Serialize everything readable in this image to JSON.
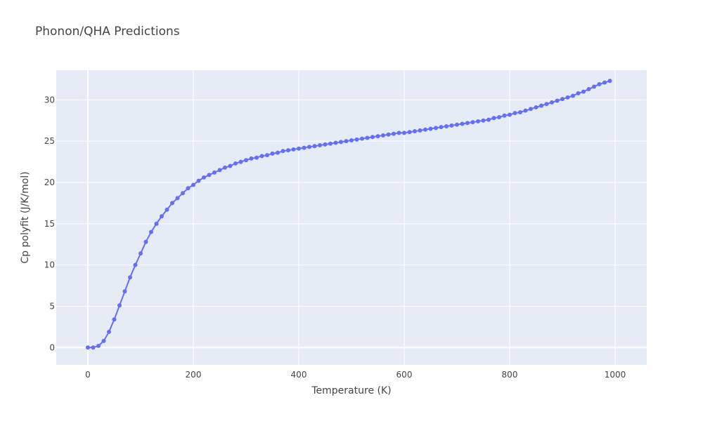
{
  "chart_data": {
    "type": "line",
    "title": "Phonon/QHA Predictions",
    "xlabel": "Temperature (K)",
    "ylabel": "Cp polyfit (J/K/mol)",
    "xlim": [
      -60,
      1060
    ],
    "ylim": [
      -2.1,
      33.6
    ],
    "xticks": [
      0,
      200,
      400,
      600,
      800,
      1000
    ],
    "xtick_labels": [
      "0",
      "200",
      "400",
      "600",
      "800",
      "1000"
    ],
    "yticks": [
      0,
      5,
      10,
      15,
      20,
      25,
      30
    ],
    "ytick_labels": [
      "0",
      "5",
      "10",
      "15",
      "20",
      "25",
      "30"
    ],
    "grid": true,
    "legend": "none",
    "colors": {
      "series": "#636efa",
      "plot_bg": "#e5ecf6",
      "grid": "#ffffff",
      "text": "#444444"
    },
    "series": [
      {
        "mode": "lines+markers",
        "x": [
          0,
          10,
          20,
          30,
          40,
          50,
          60,
          70,
          80,
          90,
          100,
          110,
          120,
          130,
          140,
          150,
          160,
          170,
          180,
          190,
          200,
          210,
          220,
          230,
          240,
          250,
          260,
          270,
          280,
          290,
          300,
          310,
          320,
          330,
          340,
          350,
          360,
          370,
          380,
          390,
          400,
          410,
          420,
          430,
          440,
          450,
          460,
          470,
          480,
          490,
          500,
          510,
          520,
          530,
          540,
          550,
          560,
          570,
          580,
          590,
          600,
          610,
          620,
          630,
          640,
          650,
          660,
          670,
          680,
          690,
          700,
          710,
          720,
          730,
          740,
          750,
          760,
          770,
          780,
          790,
          800,
          810,
          820,
          830,
          840,
          850,
          860,
          870,
          880,
          890,
          900,
          910,
          920,
          930,
          940,
          950,
          960,
          970,
          980,
          990
        ],
        "y": [
          0,
          0,
          0.2,
          0.8,
          1.9,
          3.4,
          5.1,
          6.8,
          8.5,
          10.0,
          11.4,
          12.8,
          14.0,
          15.0,
          15.9,
          16.7,
          17.5,
          18.1,
          18.7,
          19.3,
          19.7,
          20.2,
          20.6,
          20.9,
          21.2,
          21.5,
          21.8,
          22.0,
          22.3,
          22.5,
          22.7,
          22.9,
          23.0,
          23.2,
          23.3,
          23.5,
          23.6,
          23.8,
          23.9,
          24.0,
          24.1,
          24.2,
          24.3,
          24.4,
          24.5,
          24.6,
          24.7,
          24.8,
          24.9,
          25.0,
          25.1,
          25.2,
          25.3,
          25.4,
          25.5,
          25.6,
          25.7,
          25.8,
          25.9,
          26.0,
          26.0,
          26.1,
          26.2,
          26.3,
          26.4,
          26.5,
          26.6,
          26.7,
          26.8,
          26.9,
          27.0,
          27.1,
          27.2,
          27.3,
          27.4,
          27.5,
          27.6,
          27.8,
          27.9,
          28.1,
          28.2,
          28.4,
          28.5,
          28.7,
          28.9,
          29.1,
          29.3,
          29.5,
          29.7,
          29.9,
          30.1,
          30.3,
          30.5,
          30.8,
          31.0,
          31.3,
          31.6,
          31.9,
          32.1,
          32.3
        ]
      }
    ]
  }
}
